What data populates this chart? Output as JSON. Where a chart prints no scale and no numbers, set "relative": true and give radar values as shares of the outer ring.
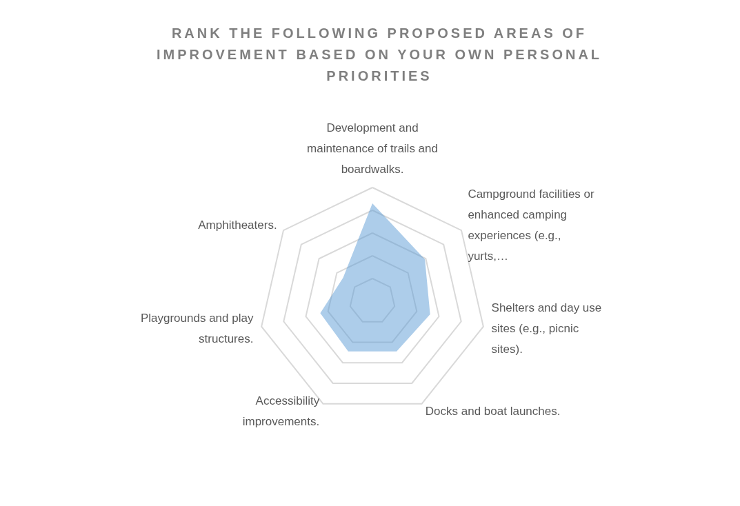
{
  "chart_data": {
    "type": "radar",
    "title": "RANK THE FOLLOWING PROPOSED AREAS OF IMPROVEMENT BASED ON YOUR OWN PERSONAL PRIORITIES",
    "relative": true,
    "categories": [
      "Development and maintenance of trails and boardwalks.",
      "Campground facilities or enhanced camping experiences (e.g., yurts,…",
      "Shelters and day use sites (e.g., picnic sites).",
      "Docks and boat launches.",
      "Accessibility improvements.",
      "Playgrounds and play structures.",
      "Amphitheaters."
    ],
    "series": [
      {
        "color": "#5b9bd5",
        "values": [
          0.86,
          0.59,
          0.52,
          0.49,
          0.49,
          0.47,
          0.33
        ]
      }
    ],
    "grid": true
  }
}
